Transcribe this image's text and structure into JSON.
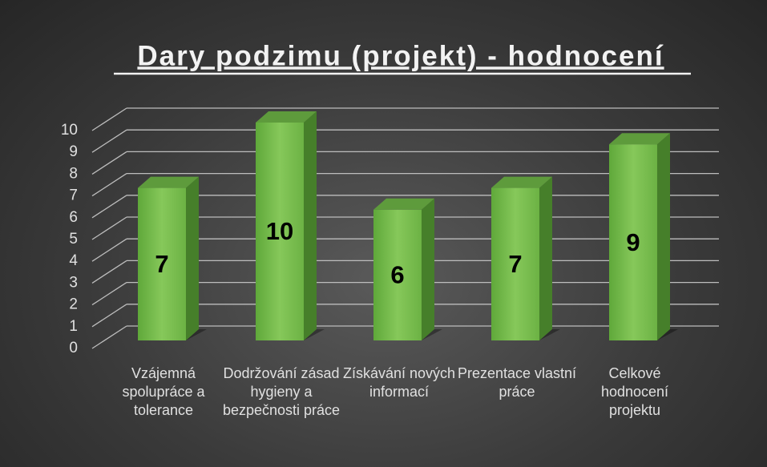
{
  "chart_data": {
    "type": "bar3d",
    "title": "Dary podzimu (projekt) - hodnocení",
    "categories": [
      "Vzájemná spolupráce a tolerance",
      "Dodržování zásad hygieny a bezpečnosti práce",
      "Získávání nových informací",
      "Prezentace vlastní práce",
      "Celkové hodnocení projektu"
    ],
    "values": [
      7,
      10,
      6,
      7,
      9
    ],
    "color": "#7dbf4f",
    "ylim": [
      0,
      10
    ],
    "yticks": [
      0,
      1,
      2,
      3,
      4,
      5,
      6,
      7,
      8,
      9,
      10
    ],
    "grid": true
  }
}
